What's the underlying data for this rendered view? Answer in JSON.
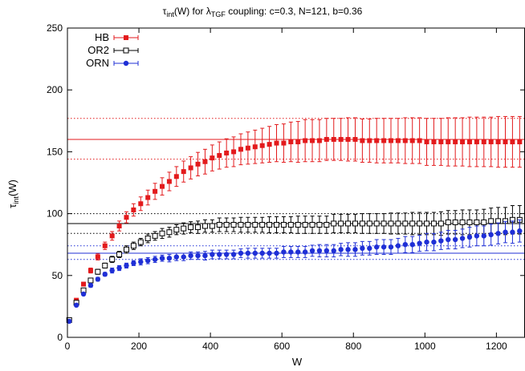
{
  "chart_data": {
    "type": "scatter",
    "title": {
      "tau": "τ",
      "tau_sub": "int",
      "mid": "(W) for ",
      "lambda": "λ",
      "lambda_sub": "TGF",
      "tail": " coupling: c=0.3, N=121, b=0.36"
    },
    "xlabel": "W",
    "ylabel": {
      "tau": "τ",
      "sub": "int",
      "tail": "(W)"
    },
    "xlim": [
      0,
      1280
    ],
    "ylim": [
      0,
      250
    ],
    "xticks": [
      0,
      200,
      400,
      600,
      800,
      1000,
      1200
    ],
    "yticks": [
      0,
      50,
      100,
      150,
      200,
      250
    ],
    "legend_position": "top-left",
    "series": [
      {
        "name": "HB",
        "color": "#e31a1c",
        "marker": "filled-square",
        "x": [
          5,
          25,
          45,
          65,
          85,
          105,
          125,
          145,
          165,
          185,
          205,
          225,
          245,
          265,
          285,
          305,
          325,
          345,
          365,
          385,
          405,
          425,
          445,
          465,
          485,
          505,
          525,
          545,
          565,
          585,
          605,
          625,
          645,
          665,
          685,
          705,
          725,
          745,
          765,
          785,
          805,
          825,
          845,
          865,
          885,
          905,
          925,
          945,
          965,
          985,
          1005,
          1025,
          1045,
          1065,
          1085,
          1105,
          1125,
          1145,
          1165,
          1185,
          1205,
          1225,
          1245,
          1265
        ],
        "y": [
          14,
          30,
          43,
          54,
          65,
          74,
          82,
          90,
          97,
          103,
          108,
          113,
          118,
          122,
          126,
          130,
          134,
          137,
          140,
          142,
          145,
          147,
          149,
          150,
          152,
          153,
          154,
          155,
          156,
          157,
          157,
          158,
          158,
          159,
          159,
          159,
          160,
          160,
          160,
          160,
          160,
          159,
          159,
          159,
          159,
          159,
          159,
          159,
          159,
          159,
          158,
          158,
          158,
          158,
          158,
          158,
          158,
          158,
          158,
          158,
          158,
          158,
          158,
          158
        ],
        "err": [
          0.5,
          1,
          1.5,
          2,
          2.5,
          3,
          3.5,
          4,
          4.5,
          5,
          5.5,
          6,
          6.5,
          7,
          7.5,
          8,
          8.5,
          9,
          9.5,
          10,
          10.5,
          11,
          11.5,
          12,
          12.5,
          13,
          13.5,
          14,
          14.5,
          15,
          15.5,
          16,
          16.5,
          17,
          17,
          17,
          17,
          17,
          17,
          17.5,
          17.5,
          17.5,
          17.5,
          18,
          18,
          18,
          18,
          18.5,
          18.5,
          18.5,
          19,
          19,
          19,
          19.5,
          19.5,
          19.5,
          20,
          20,
          20,
          20,
          20.5,
          20.5,
          20.5,
          20.5
        ],
        "ref_line": 160,
        "ref_band": [
          144,
          177
        ]
      },
      {
        "name": "OR2",
        "color": "#000000",
        "marker": "open-square",
        "x": [
          5,
          25,
          45,
          65,
          85,
          105,
          125,
          145,
          165,
          185,
          205,
          225,
          245,
          265,
          285,
          305,
          325,
          345,
          365,
          385,
          405,
          425,
          445,
          465,
          485,
          505,
          525,
          545,
          565,
          585,
          605,
          625,
          645,
          665,
          685,
          705,
          725,
          745,
          765,
          785,
          805,
          825,
          845,
          865,
          885,
          905,
          925,
          945,
          965,
          985,
          1005,
          1025,
          1045,
          1065,
          1085,
          1105,
          1125,
          1145,
          1165,
          1185,
          1205,
          1225,
          1245,
          1265
        ],
        "y": [
          14,
          28,
          38,
          46,
          53,
          58,
          63,
          67,
          71,
          74,
          77,
          80,
          82,
          84,
          85,
          87,
          88,
          89,
          89,
          90,
          90,
          91,
          91,
          91,
          91,
          91,
          91,
          91,
          91,
          91,
          91,
          91,
          91,
          91,
          91,
          91,
          91,
          92,
          92,
          92,
          92,
          92,
          92,
          92,
          92,
          92,
          92,
          92,
          92,
          92,
          92,
          92,
          92,
          93,
          93,
          93,
          93,
          93,
          93,
          94,
          94,
          94,
          95,
          95
        ],
        "err": [
          0.5,
          1,
          1.5,
          1.5,
          2,
          2,
          2.5,
          2.5,
          3,
          3,
          3,
          3.5,
          3.5,
          4,
          4,
          4,
          4.5,
          4.5,
          5,
          5,
          5,
          5.5,
          5.5,
          5.5,
          6,
          6,
          6,
          6,
          6.5,
          6.5,
          6.5,
          6.5,
          7,
          7,
          7,
          7,
          7,
          7.5,
          7.5,
          7.5,
          7.5,
          8,
          8,
          8,
          8,
          8.5,
          8.5,
          8.5,
          9,
          9,
          9,
          9,
          9.5,
          9.5,
          9.5,
          10,
          10,
          10,
          10.5,
          10.5,
          11,
          11,
          11.5,
          11.5
        ],
        "ref_line": 92,
        "ref_band": [
          84,
          100
        ]
      },
      {
        "name": "ORN",
        "color": "#1f2fd6",
        "marker": "filled-circle",
        "x": [
          5,
          25,
          45,
          65,
          85,
          105,
          125,
          145,
          165,
          185,
          205,
          225,
          245,
          265,
          285,
          305,
          325,
          345,
          365,
          385,
          405,
          425,
          445,
          465,
          485,
          505,
          525,
          545,
          565,
          585,
          605,
          625,
          645,
          665,
          685,
          705,
          725,
          745,
          765,
          785,
          805,
          825,
          845,
          865,
          885,
          905,
          925,
          945,
          965,
          985,
          1005,
          1025,
          1045,
          1065,
          1085,
          1105,
          1125,
          1145,
          1165,
          1185,
          1205,
          1225,
          1245,
          1265
        ],
        "y": [
          13,
          26,
          35,
          42,
          47,
          51,
          54,
          56,
          58,
          60,
          61,
          62,
          63,
          64,
          64,
          65,
          65,
          66,
          66,
          66,
          67,
          67,
          67,
          67,
          68,
          68,
          68,
          68,
          68,
          68,
          69,
          69,
          69,
          69,
          70,
          70,
          70,
          70,
          71,
          71,
          71,
          72,
          72,
          73,
          73,
          73,
          74,
          75,
          75,
          76,
          77,
          77,
          78,
          79,
          79,
          80,
          81,
          82,
          82,
          83,
          84,
          85,
          85,
          86
        ],
        "err": [
          0.5,
          1,
          1,
          1.5,
          1.5,
          1.5,
          2,
          2,
          2,
          2,
          2.5,
          2.5,
          2.5,
          2.5,
          3,
          3,
          3,
          3,
          3,
          3.5,
          3.5,
          3.5,
          3.5,
          3.5,
          3.5,
          4,
          4,
          4,
          4,
          4,
          4.5,
          4.5,
          4.5,
          4.5,
          4.5,
          5,
          5,
          5,
          5,
          5.5,
          5.5,
          5.5,
          5.5,
          6,
          6,
          6,
          6,
          6.5,
          6.5,
          6.5,
          7,
          7,
          7,
          7.5,
          7.5,
          7.5,
          8,
          8,
          8,
          8.5,
          8.5,
          8.5,
          9,
          9
        ],
        "ref_line": 68,
        "ref_band": [
          63,
          74
        ]
      }
    ]
  }
}
